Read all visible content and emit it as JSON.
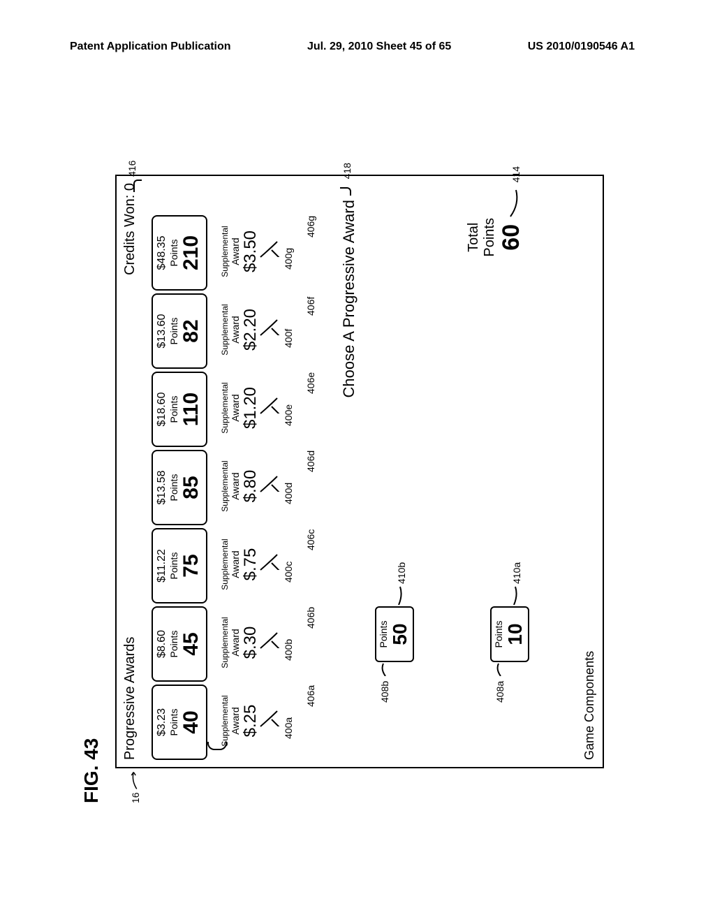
{
  "header": {
    "left": "Patent Application Publication",
    "center": "Jul. 29, 2010  Sheet 45 of 65",
    "right": "US 2010/0190546 A1"
  },
  "figure_label": "FIG. 43",
  "ref_16": "16",
  "screen": {
    "title_left": "Progressive Awards",
    "title_right_label": "Credits Won:",
    "title_right_value": "0",
    "ref_416": "416"
  },
  "awards": [
    {
      "amount": "$3.23",
      "points_label": "Points",
      "points": "40",
      "ref400": "400a",
      "ref406": "406a",
      "supp_label1": "Supplemental",
      "supp_label2": "Award",
      "supp_value": "$.25"
    },
    {
      "amount": "$8.60",
      "points_label": "Points",
      "points": "45",
      "ref400": "400b",
      "ref406": "406b",
      "supp_label1": "Supplemental",
      "supp_label2": "Award",
      "supp_value": "$.30"
    },
    {
      "amount": "$11.22",
      "points_label": "Points",
      "points": "75",
      "ref400": "400c",
      "ref406": "406c",
      "supp_label1": "Supplemental",
      "supp_label2": "Award",
      "supp_value": "$.75"
    },
    {
      "amount": "$13.58",
      "points_label": "Points",
      "points": "85",
      "ref400": "400d",
      "ref406": "406d",
      "supp_label1": "Supplemental",
      "supp_label2": "Award",
      "supp_value": "$.80"
    },
    {
      "amount": "$18.60",
      "points_label": "Points",
      "points": "110",
      "ref400": "400e",
      "ref406": "406e",
      "supp_label1": "Supplemental",
      "supp_label2": "Award",
      "supp_value": "$1.20"
    },
    {
      "amount": "$13.60",
      "points_label": "Points",
      "points": "82",
      "ref400": "400f",
      "ref406": "406f",
      "supp_label1": "Supplemental",
      "supp_label2": "Award",
      "supp_value": "$2.20"
    },
    {
      "amount": "$48.35",
      "points_label": "Points",
      "points": "210",
      "ref400": "400g",
      "ref406": "406g",
      "supp_label1": "Supplemental",
      "supp_label2": "Award",
      "supp_value": "$3.50"
    }
  ],
  "choose_text": "Choose A Progressive Award",
  "ref_418": "418",
  "points_boxes": [
    {
      "label": "Points",
      "value": "50",
      "ref408": "408b",
      "ref410": "410b"
    },
    {
      "label": "Points",
      "value": "10",
      "ref408": "408a",
      "ref410": "410a"
    }
  ],
  "total_points": {
    "label1": "Total",
    "label2": "Points",
    "value": "60",
    "ref": "414"
  },
  "game_components": "Game Components"
}
